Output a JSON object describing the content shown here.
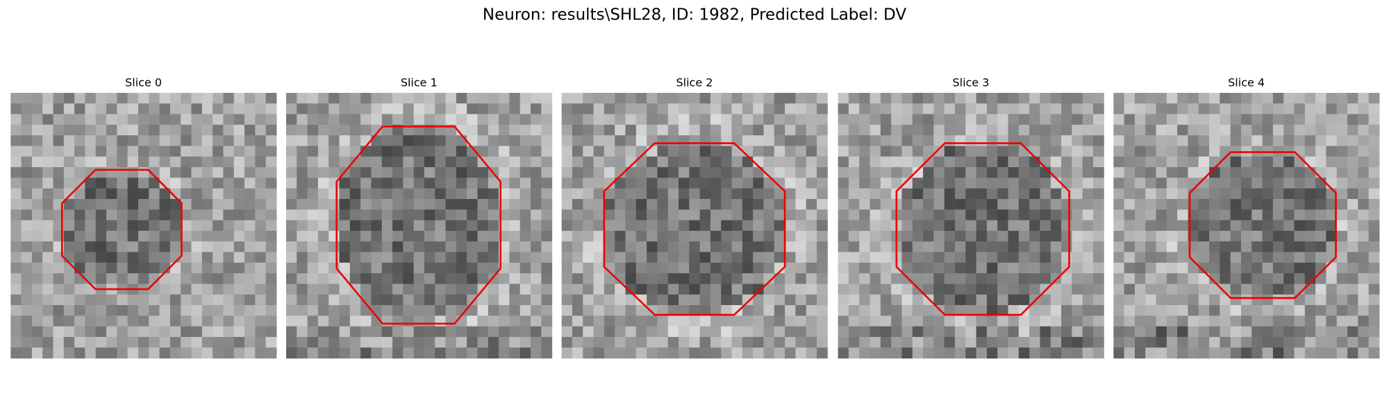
{
  "title": "Neuron: results\\SHL28, ID: 1982, Predicted Label: DV",
  "panels": [
    {
      "title": "Slice 0"
    },
    {
      "title": "Slice 1"
    },
    {
      "title": "Slice 2"
    },
    {
      "title": "Slice 3"
    },
    {
      "title": "Slice 4"
    }
  ]
}
